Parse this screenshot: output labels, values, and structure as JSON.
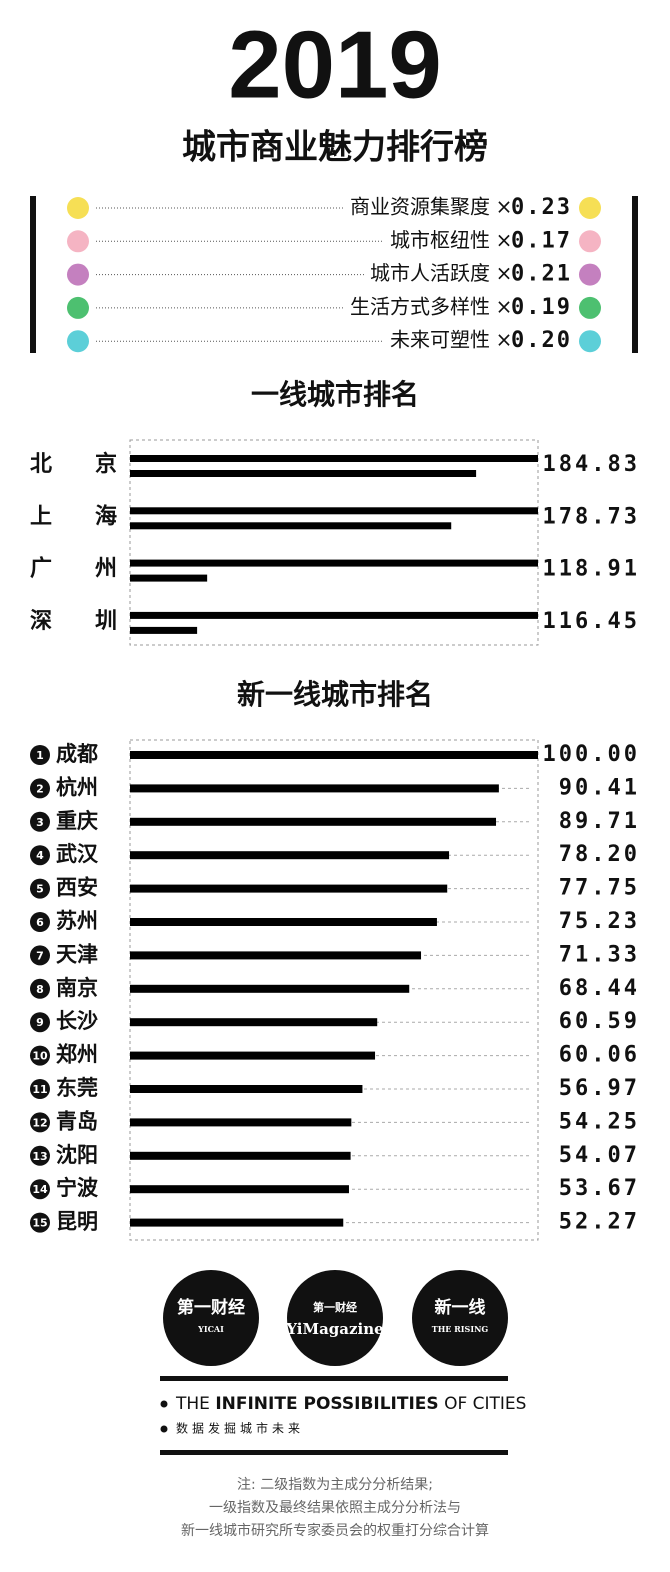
{
  "header": {
    "year": "2019",
    "title": "城市商业魅力排行榜"
  },
  "weights": [
    {
      "label": "商业资源集聚度",
      "weight": "0.23",
      "color": "#f6df55"
    },
    {
      "label": "城市枢纽性",
      "weight": "0.17",
      "color": "#f5b4c3"
    },
    {
      "label": "城市人活跃度",
      "weight": "0.21",
      "color": "#c480bf"
    },
    {
      "label": "生活方式多样性",
      "weight": "0.19",
      "color": "#4dc070"
    },
    {
      "label": "未来可塑性",
      "weight": "0.20",
      "color": "#5ccfd8"
    }
  ],
  "times": "×",
  "chart_data": [
    {
      "type": "bar",
      "title": "一线城市排名",
      "categories": [
        "北京",
        "上海",
        "广州",
        "深圳"
      ],
      "values": [
        184.83,
        178.73,
        118.91,
        116.45
      ],
      "value_labels": [
        "184.83",
        "178.73",
        "118.91",
        "116.45"
      ],
      "xlim": [
        0,
        100
      ],
      "color": "#000000"
    },
    {
      "type": "bar",
      "title": "新一线城市排名",
      "ranks": [
        1,
        2,
        3,
        4,
        5,
        6,
        7,
        8,
        9,
        10,
        11,
        12,
        13,
        14,
        15
      ],
      "categories": [
        "成都",
        "杭州",
        "重庆",
        "武汉",
        "西安",
        "苏州",
        "天津",
        "南京",
        "长沙",
        "郑州",
        "东莞",
        "青岛",
        "沈阳",
        "宁波",
        "昆明"
      ],
      "values": [
        100.0,
        90.41,
        89.71,
        78.2,
        77.75,
        75.23,
        71.33,
        68.44,
        60.59,
        60.06,
        56.97,
        54.25,
        54.07,
        53.67,
        52.27
      ],
      "value_labels": [
        "100.00",
        "90.41",
        "89.71",
        "78.20",
        "77.75",
        "75.23",
        "71.33",
        "68.44",
        "60.59",
        "60.06",
        "56.97",
        "54.25",
        "54.07",
        "53.67",
        "52.27"
      ],
      "xlim": [
        0,
        100
      ],
      "color": "#000000"
    }
  ],
  "footer": {
    "logos": [
      {
        "main": "第一财经",
        "sub": "YICAI"
      },
      {
        "main": "第一财经",
        "sub": "YiMagazine"
      },
      {
        "main": "新一线",
        "sub": "THE RISING"
      }
    ],
    "tagline": [
      "THE ",
      "INFINITE POSSIBILITIES",
      " OF CITIES"
    ],
    "subline": "数据发掘城市未来",
    "notes": [
      "注: 二级指数为主成分分析结果;",
      "一级指数及最终结果依照主成分分析法与",
      "新一线城市研究所专家委员会的权重打分综合计算"
    ]
  }
}
